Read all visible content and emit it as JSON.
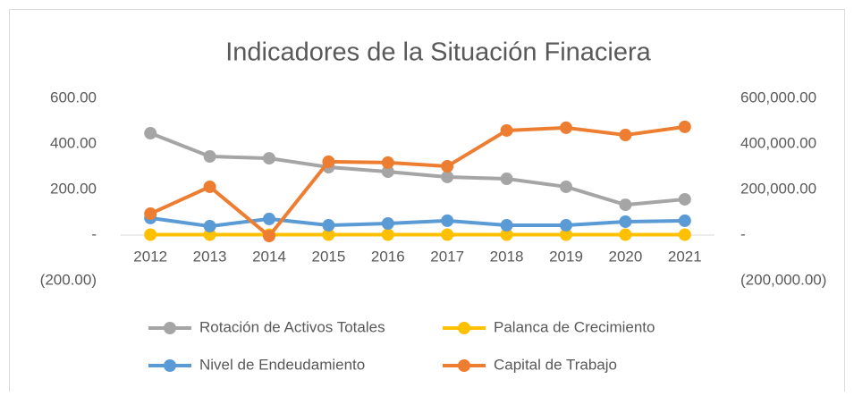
{
  "chart_data": {
    "type": "line",
    "title": "Indicadores de la Situación Finaciera",
    "categories": [
      "2012",
      "2013",
      "2014",
      "2015",
      "2016",
      "2017",
      "2018",
      "2019",
      "2020",
      "2021"
    ],
    "series": [
      {
        "name": "Rotación de Activos Totales",
        "color": "#a5a5a5",
        "values": [
          447,
          345,
          337,
          298,
          278,
          255,
          247,
          212,
          133,
          157
        ]
      },
      {
        "name": "Palanca de Crecimiento",
        "color": "#ffc000",
        "values": [
          2,
          2,
          2,
          2,
          2,
          2,
          2,
          2,
          2,
          2
        ]
      },
      {
        "name": "Nivel de Endeudamiento",
        "color": "#5b9bd5",
        "values": [
          75,
          39,
          71,
          43,
          51,
          63,
          43,
          43,
          59,
          63
        ]
      },
      {
        "name": "Capital de Trabajo",
        "color": "#ed7d31",
        "axis": "y2",
        "values": [
          94000,
          212000,
          -4000,
          322000,
          318000,
          302000,
          459000,
          471000,
          439000,
          475000
        ]
      }
    ],
    "ylim": [
      -200,
      600
    ],
    "yticks": [
      {
        "value": -200,
        "label": "(200.00)"
      },
      {
        "value": 0,
        "label": "-"
      },
      {
        "value": 200,
        "label": "200.00"
      },
      {
        "value": 400,
        "label": "400.00"
      },
      {
        "value": 600,
        "label": "600.00"
      }
    ],
    "y2lim": [
      -200000,
      600000
    ],
    "y2ticks": [
      {
        "value": -200000,
        "label": "(200,000.00)"
      },
      {
        "value": 0,
        "label": "-"
      },
      {
        "value": 200000,
        "label": "200,000.00"
      },
      {
        "value": 400000,
        "label": "400,000.00"
      },
      {
        "value": 600000,
        "label": "600,000.00"
      }
    ],
    "grid": false,
    "legend": "bottom"
  }
}
